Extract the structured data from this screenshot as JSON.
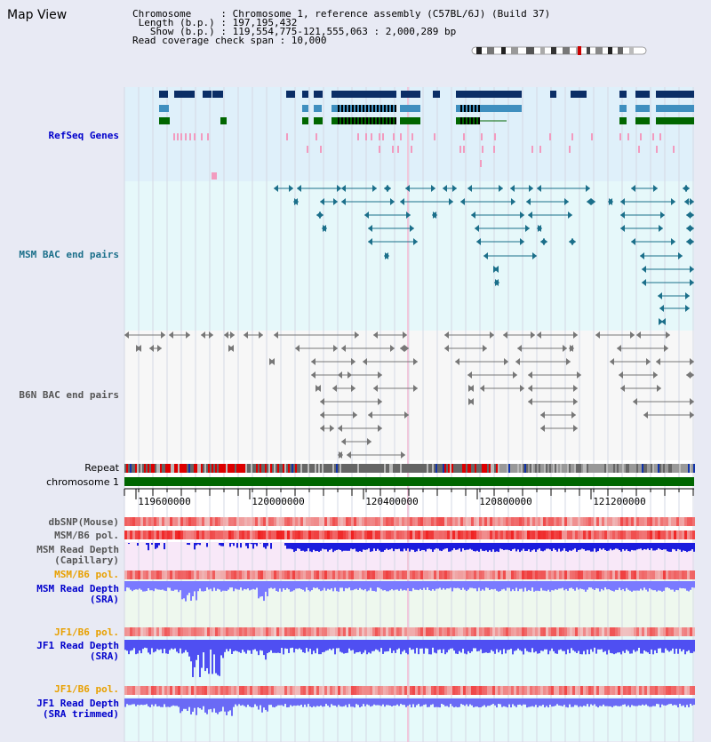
{
  "title": "Map View",
  "info": {
    "chromosome": "Chromosome     : Chromosome 1, reference assembly (C57BL/6J) (Build 37)",
    "length": " Length (b.p.) : 197,195,432",
    "show": "   Show (b.p.) : 119,554,775-121,555,063 : 2,000,289 bp",
    "coverage": "Read coverage check span : 10,000"
  },
  "tracks": {
    "refseq": "RefSeq Genes",
    "msm_bac": "MSM BAC end pairs",
    "b6n_bac": "B6N BAC end pairs",
    "repeat": "Repeat",
    "chromosome": "chromosome 1",
    "dbsnp": "dbSNP(Mouse)",
    "msm_b6_pol_cap": "MSM/B6 pol.",
    "msm_depth_cap": "MSM Read Depth\n(Capillary)",
    "msm_b6_pol_sra": "MSM/B6 pol.",
    "msm_depth_sra": "MSM Read Depth\n(SRA)",
    "jf1_b6_pol": "JF1/B6 pol.",
    "jf1_depth_sra": "JF1 Read Depth\n(SRA)",
    "jf1_b6_pol_trim": "JF1/B6 pol.",
    "jf1_depth_trim": "JF1 Read Depth\n(SRA trimmed)"
  },
  "axis": {
    "ticks": [
      "119600000",
      "120000000",
      "120400000",
      "120800000",
      "121200000"
    ]
  },
  "colors": {
    "navy": "#0b2e66",
    "teal": "#1b6f8a",
    "green": "#006600",
    "orange": "#e8a000",
    "blue_label": "#0000cc",
    "gray_label": "#555555"
  }
}
